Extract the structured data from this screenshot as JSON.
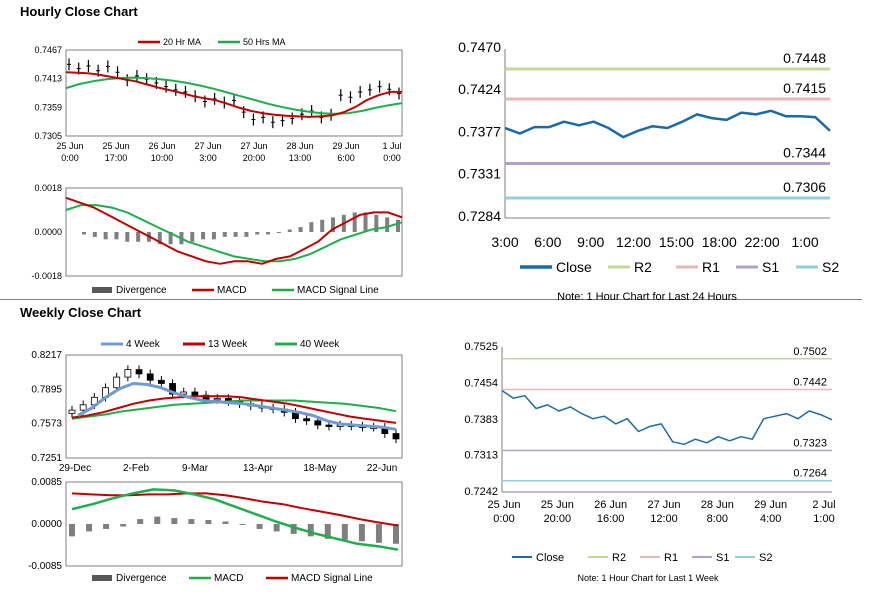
{
  "titles": {
    "hourly": "Hourly Close Chart",
    "weekly": "Weekly Close Chart"
  },
  "colors": {
    "red": "#c00000",
    "green": "#1fae4b",
    "price": "#000000",
    "blue": "#1a6aa8",
    "lightblue": "#6f9bd1",
    "r2": "#c4d79b",
    "r1": "#e6b8b7",
    "s1": "#b1a0c7",
    "s2": "#92cddc",
    "grey": "#7f7f7f"
  },
  "chart_data": [
    {
      "id": "hourly-price",
      "type": "line",
      "legend": [
        "20 Hr MA",
        "50 Hrs MA"
      ],
      "yticks": [
        "0.7467",
        "0.7413",
        "0.7359",
        "0.7305"
      ],
      "ylim": [
        0.7305,
        0.7467
      ],
      "xticks": [
        [
          "25 Jun",
          "0:00"
        ],
        [
          "25 Jun",
          "17:00"
        ],
        [
          "26 Jun",
          "10:00"
        ],
        [
          "27 Jun",
          "3:00"
        ],
        [
          "27 Jun",
          "20:00"
        ],
        [
          "28 Jun",
          "13:00"
        ],
        [
          "29 Jun",
          "6:00"
        ],
        [
          "1 Jul",
          "0:00"
        ]
      ],
      "price": [
        0.744,
        0.7432,
        0.7437,
        0.7428,
        0.7436,
        0.7425,
        0.741,
        0.7418,
        0.7412,
        0.7405,
        0.7398,
        0.7392,
        0.7388,
        0.738,
        0.737,
        0.7375,
        0.7368,
        0.7372,
        0.735,
        0.7336,
        0.734,
        0.7331,
        0.7334,
        0.7338,
        0.7346,
        0.7352,
        0.734,
        0.7345,
        0.7382,
        0.7378,
        0.7388,
        0.7392,
        0.7398,
        0.7393,
        0.7385
      ],
      "ma20": [
        0.7425,
        0.7424,
        0.7423,
        0.742,
        0.7416,
        0.7412,
        0.7408,
        0.7402,
        0.7396,
        0.7391,
        0.7386,
        0.738,
        0.7376,
        0.7372,
        0.7365,
        0.7358,
        0.7352,
        0.7348,
        0.7345,
        0.7343,
        0.7342,
        0.7341,
        0.7342,
        0.7344,
        0.735,
        0.736,
        0.7373,
        0.7382,
        0.7388,
        0.7388
      ],
      "ma50": [
        0.7395,
        0.7403,
        0.7408,
        0.7412,
        0.7414,
        0.7415,
        0.7414,
        0.7412,
        0.7409,
        0.7405,
        0.74,
        0.7394,
        0.7387,
        0.738,
        0.7373,
        0.7366,
        0.736,
        0.7355,
        0.7351,
        0.7348,
        0.7347,
        0.7348,
        0.7352,
        0.7358,
        0.7363,
        0.7367
      ]
    },
    {
      "id": "hourly-macd",
      "type": "bar",
      "legend": [
        "Divergence",
        "MACD",
        "MACD Signal Line"
      ],
      "yticks": [
        "0.0018",
        "0.0000",
        "-0.0018"
      ],
      "ylim": [
        -0.0018,
        0.0018
      ],
      "divergence": [
        -0.0001,
        -0.0002,
        -0.0003,
        -0.0003,
        -0.0004,
        -0.0004,
        -0.0004,
        -0.0005,
        -0.0005,
        -0.0005,
        -0.0004,
        -0.0003,
        -0.0003,
        -0.0002,
        -0.0002,
        -0.0002,
        -0.0001,
        -0.0001,
        0.0,
        0.0001,
        0.0002,
        0.0004,
        0.0005,
        0.0006,
        0.0007,
        0.0008,
        0.0008,
        0.0007,
        0.0006,
        0.0005
      ],
      "macd": [
        0.0014,
        0.0012,
        0.001,
        0.0007,
        0.0004,
        0.0001,
        -0.0002,
        -0.0005,
        -0.0008,
        -0.001,
        -0.0012,
        -0.0013,
        -0.0012,
        -0.0012,
        -0.0013,
        -0.0011,
        -0.001,
        -0.0007,
        -0.0004,
        0.0001,
        0.0004,
        0.0007,
        0.0008,
        0.0008,
        0.0006
      ],
      "signal": [
        0.0009,
        0.0011,
        0.0011,
        0.001,
        0.0008,
        0.0005,
        0.0002,
        -0.0001,
        -0.0004,
        -0.0006,
        -0.0008,
        -0.001,
        -0.0011,
        -0.0012,
        -0.0012,
        -0.0011,
        -0.0009,
        -0.0006,
        -0.0003,
        -0.0001,
        0.0001,
        0.0002,
        0.0004
      ]
    },
    {
      "id": "hourly-levels",
      "type": "line",
      "yticks": [
        "0.7470",
        "0.7424",
        "0.7377",
        "0.7331",
        "0.7284"
      ],
      "ylim": [
        0.7284,
        0.747
      ],
      "xticks": [
        "3:00",
        "6:00",
        "9:00",
        "12:00",
        "15:00",
        "18:00",
        "22:00",
        "1:00"
      ],
      "close": [
        0.7383,
        0.7377,
        0.7384,
        0.7384,
        0.739,
        0.7386,
        0.739,
        0.7383,
        0.7373,
        0.738,
        0.7385,
        0.7383,
        0.739,
        0.7398,
        0.7394,
        0.7392,
        0.74,
        0.7398,
        0.7402,
        0.7396,
        0.7396,
        0.7395,
        0.738
      ],
      "levels": {
        "R2": 0.7448,
        "R1": 0.7415,
        "S1": 0.7344,
        "S2": 0.7306
      },
      "level_labels": [
        "0.7448",
        "0.7415",
        "0.7344",
        "0.7306"
      ],
      "legend": [
        "Close",
        "R2",
        "R1",
        "S1",
        "S2"
      ],
      "note": "Note: 1 Hour Chart for Last 24 Hours"
    },
    {
      "id": "weekly-price",
      "type": "line",
      "legend": [
        "4 Week",
        "13 Week",
        "40 Week"
      ],
      "yticks": [
        "0.8217",
        "0.7895",
        "0.7573",
        "0.7251"
      ],
      "ylim": [
        0.7251,
        0.8217
      ],
      "xticks": [
        "29-Dec",
        "2-Feb",
        "9-Mar",
        "13-Apr",
        "18-May",
        "22-Jun"
      ],
      "close": [
        0.77,
        0.775,
        0.782,
        0.791,
        0.801,
        0.808,
        0.804,
        0.798,
        0.795,
        0.785,
        0.787,
        0.784,
        0.78,
        0.781,
        0.778,
        0.776,
        0.774,
        0.772,
        0.771,
        0.768,
        0.762,
        0.76,
        0.756,
        0.755,
        0.756,
        0.755,
        0.754,
        0.754,
        0.748,
        0.743
      ],
      "w4": [
        0.765,
        0.772,
        0.782,
        0.79,
        0.795,
        0.794,
        0.791,
        0.786,
        0.782,
        0.779,
        0.778,
        0.777,
        0.776,
        0.774,
        0.772,
        0.77,
        0.768,
        0.765,
        0.76,
        0.757,
        0.756,
        0.755,
        0.754,
        0.752
      ],
      "w13": [
        0.763,
        0.765,
        0.768,
        0.772,
        0.776,
        0.779,
        0.781,
        0.782,
        0.783,
        0.783,
        0.783,
        0.782,
        0.78,
        0.778,
        0.776,
        0.773,
        0.77,
        0.767,
        0.764,
        0.762,
        0.76,
        0.758
      ],
      "w40": [
        0.762,
        0.764,
        0.766,
        0.769,
        0.771,
        0.773,
        0.775,
        0.776,
        0.777,
        0.778,
        0.779,
        0.779,
        0.779,
        0.779,
        0.778,
        0.777,
        0.776,
        0.774,
        0.772,
        0.769
      ]
    },
    {
      "id": "weekly-macd",
      "type": "bar",
      "legend": [
        "Divergence",
        "MACD",
        "MACD Signal Line"
      ],
      "yticks": [
        "0.0085",
        "0.0000",
        "-0.0085"
      ],
      "ylim": [
        -0.0085,
        0.0085
      ],
      "divergence": [
        -0.0025,
        -0.0015,
        -0.001,
        -0.0005,
        0.001,
        0.0015,
        0.0012,
        0.001,
        0.0008,
        0.0005,
        0.0,
        -0.001,
        -0.0015,
        -0.002,
        -0.0025,
        -0.003,
        -0.0032,
        -0.0035,
        -0.0038,
        -0.004
      ],
      "macd": [
        0.003,
        0.004,
        0.0052,
        0.0062,
        0.007,
        0.0068,
        0.006,
        0.005,
        0.0035,
        0.002,
        0.0005,
        -0.0008,
        -0.002,
        -0.003,
        -0.004,
        -0.0045,
        -0.0052
      ],
      "signal": [
        0.0062,
        0.006,
        0.0058,
        0.0058,
        0.006,
        0.006,
        0.0062,
        0.0062,
        0.0058,
        0.0052,
        0.0045,
        0.004,
        0.0032,
        0.0025,
        0.0018,
        0.001,
        0.0003,
        -0.0003
      ]
    },
    {
      "id": "weekly-levels",
      "type": "line",
      "yticks": [
        "0.7525",
        "0.7454",
        "0.7383",
        "0.7313",
        "0.7242"
      ],
      "ylim": [
        0.7242,
        0.7525
      ],
      "xticks": [
        [
          "25 Jun",
          "0:00"
        ],
        [
          "25 Jun",
          "20:00"
        ],
        [
          "26 Jun",
          "16:00"
        ],
        [
          "27 Jun",
          "12:00"
        ],
        [
          "28 Jun",
          "8:00"
        ],
        [
          "29 Jun",
          "4:00"
        ],
        [
          "2 Jul",
          "1:00"
        ]
      ],
      "close": [
        0.744,
        0.7425,
        0.743,
        0.7405,
        0.7412,
        0.74,
        0.7408,
        0.7395,
        0.7385,
        0.739,
        0.7375,
        0.7385,
        0.736,
        0.737,
        0.7375,
        0.734,
        0.7335,
        0.7345,
        0.7338,
        0.735,
        0.7342,
        0.735,
        0.7345,
        0.7385,
        0.739,
        0.7395,
        0.7385,
        0.74,
        0.7393,
        0.7383
      ],
      "levels": {
        "R2": 0.7502,
        "R1": 0.7442,
        "S1": 0.7323,
        "S2": 0.7264
      },
      "level_labels": [
        "0.7502",
        "0.7442",
        "0.7323",
        "0.7264"
      ],
      "legend": [
        "Close",
        "R2",
        "R1",
        "S1",
        "S2"
      ],
      "note": "Note: 1 Hour Chart for Last 1 Week"
    }
  ]
}
